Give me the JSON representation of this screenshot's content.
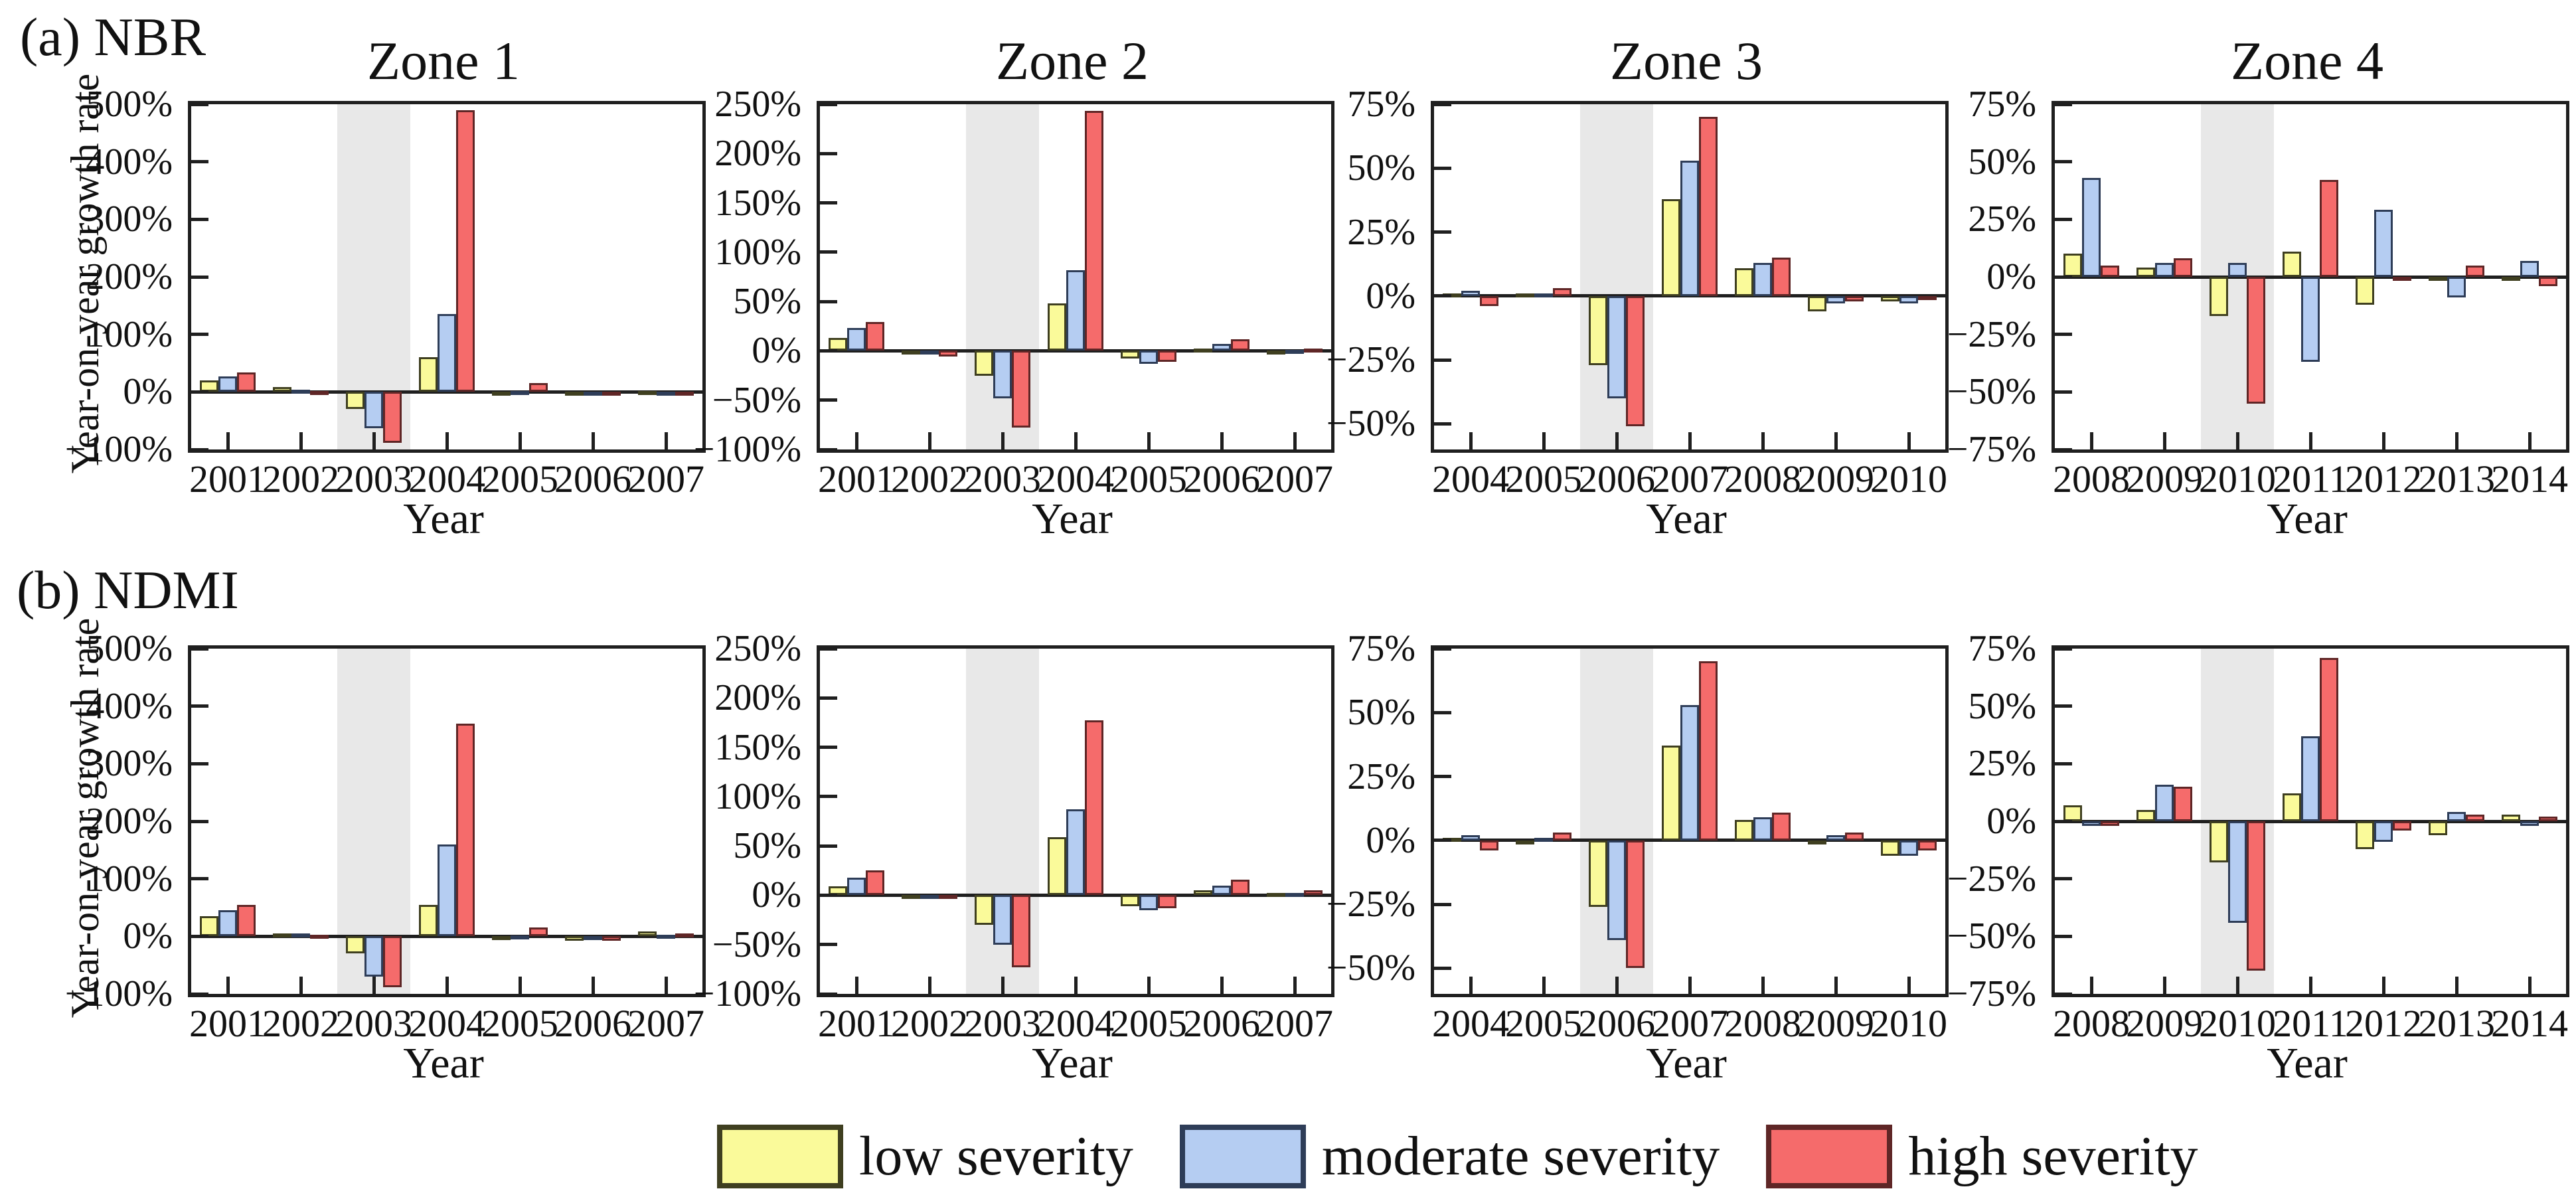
{
  "figure": {
    "panel_a_label": "(a) NBR",
    "panel_b_label": "(b) NDMI",
    "ylabel": "Year-on-year growth rate",
    "xlabel": "Year"
  },
  "legend": {
    "items": [
      {
        "key": "low",
        "label": "low severity",
        "color": "#FAFA9A",
        "border": "#3f3f20"
      },
      {
        "key": "moderate",
        "label": "moderate severity",
        "color": "#B5CDF2",
        "border": "#2e3d58"
      },
      {
        "key": "high",
        "label": "high severity",
        "color": "#F56B6B",
        "border": "#5f2626"
      }
    ]
  },
  "chart_data": [
    {
      "type": "bar",
      "row": "a",
      "index": "NBR",
      "title": "Zone 1",
      "categories": [
        "2001",
        "2002",
        "2003",
        "2004",
        "2005",
        "2006",
        "2007"
      ],
      "shaded_category": "2003",
      "ylim": [
        -100,
        500
      ],
      "yticks": [
        500,
        400,
        300,
        200,
        100,
        0,
        -100
      ],
      "ylabel": "Year-on-year growth rate",
      "xlabel": "Year",
      "series": [
        {
          "name": "low severity",
          "values": [
            20,
            8,
            -30,
            60,
            -5,
            -3,
            1
          ]
        },
        {
          "name": "moderate severity",
          "values": [
            27,
            4,
            -63,
            135,
            1,
            -2,
            -1
          ]
        },
        {
          "name": "high severity",
          "values": [
            34,
            2,
            -88,
            490,
            15,
            -2,
            -2
          ]
        }
      ]
    },
    {
      "type": "bar",
      "row": "a",
      "index": "NBR",
      "title": "Zone 2",
      "categories": [
        "2001",
        "2002",
        "2003",
        "2004",
        "2005",
        "2006",
        "2007"
      ],
      "shaded_category": "2003",
      "ylim": [
        -100,
        250
      ],
      "yticks": [
        250,
        200,
        150,
        100,
        50,
        0,
        -50,
        -100
      ],
      "ylabel": "Year-on-year growth rate",
      "xlabel": "Year",
      "series": [
        {
          "name": "low severity",
          "values": [
            13,
            -2,
            -25,
            48,
            -8,
            2,
            -1
          ]
        },
        {
          "name": "moderate severity",
          "values": [
            23,
            -4,
            -48,
            82,
            -13,
            7,
            1
          ]
        },
        {
          "name": "high severity",
          "values": [
            29,
            -6,
            -78,
            243,
            -11,
            12,
            2
          ]
        }
      ]
    },
    {
      "type": "bar",
      "row": "a",
      "index": "NBR",
      "title": "Zone 3",
      "categories": [
        "2004",
        "2005",
        "2006",
        "2007",
        "2008",
        "2009",
        "2010"
      ],
      "shaded_category": "2006",
      "ylim": [
        -60,
        75
      ],
      "yticks": [
        75,
        50,
        25,
        0,
        -25,
        -50
      ],
      "ylabel": "Year-on-year growth rate",
      "xlabel": "Year",
      "series": [
        {
          "name": "low severity",
          "values": [
            1,
            1,
            -27,
            38,
            11,
            -6,
            -2
          ]
        },
        {
          "name": "moderate severity",
          "values": [
            2,
            1,
            -40,
            53,
            13,
            -3,
            -3
          ]
        },
        {
          "name": "high severity",
          "values": [
            -4,
            3,
            -51,
            70,
            15,
            -2,
            -1
          ]
        }
      ]
    },
    {
      "type": "bar",
      "row": "a",
      "index": "NBR",
      "title": "Zone 4",
      "categories": [
        "2008",
        "2009",
        "2010",
        "2011",
        "2012",
        "2013",
        "2014"
      ],
      "shaded_category": "2010",
      "ylim": [
        -75,
        75
      ],
      "yticks": [
        75,
        50,
        25,
        0,
        -25,
        -50,
        -75
      ],
      "ylabel": "Year-on-year growth rate",
      "xlabel": "Year",
      "series": [
        {
          "name": "low severity",
          "values": [
            10,
            4,
            -17,
            11,
            -12,
            -1,
            -1
          ]
        },
        {
          "name": "moderate severity",
          "values": [
            43,
            6,
            6,
            -37,
            29,
            -9,
            7
          ]
        },
        {
          "name": "high severity",
          "values": [
            5,
            8,
            -55,
            42,
            -1,
            5,
            -4
          ]
        }
      ]
    },
    {
      "type": "bar",
      "row": "b",
      "index": "NDMI",
      "title": "",
      "categories": [
        "2001",
        "2002",
        "2003",
        "2004",
        "2005",
        "2006",
        "2007"
      ],
      "shaded_category": "2003",
      "ylim": [
        -100,
        500
      ],
      "yticks": [
        500,
        400,
        300,
        200,
        100,
        0,
        -100
      ],
      "ylabel": "Year-on-year growth rate",
      "xlabel": "Year",
      "series": [
        {
          "name": "low severity",
          "values": [
            35,
            5,
            -30,
            55,
            -2,
            -8,
            8
          ]
        },
        {
          "name": "moderate severity",
          "values": [
            45,
            5,
            -70,
            160,
            1,
            -7,
            3
          ]
        },
        {
          "name": "high severity",
          "values": [
            55,
            3,
            -88,
            370,
            15,
            -8,
            5
          ]
        }
      ]
    },
    {
      "type": "bar",
      "row": "b",
      "index": "NDMI",
      "title": "",
      "categories": [
        "2001",
        "2002",
        "2003",
        "2004",
        "2005",
        "2006",
        "2007"
      ],
      "shaded_category": "2003",
      "ylim": [
        -100,
        250
      ],
      "yticks": [
        250,
        200,
        150,
        100,
        50,
        0,
        -50,
        -100
      ],
      "ylabel": "Year-on-year growth rate",
      "xlabel": "Year",
      "series": [
        {
          "name": "low severity",
          "values": [
            9,
            -1,
            -30,
            59,
            -11,
            5,
            2
          ]
        },
        {
          "name": "moderate severity",
          "values": [
            18,
            -2,
            -50,
            87,
            -15,
            10,
            2
          ]
        },
        {
          "name": "high severity",
          "values": [
            25,
            -1,
            -73,
            177,
            -13,
            16,
            5
          ]
        }
      ]
    },
    {
      "type": "bar",
      "row": "b",
      "index": "NDMI",
      "title": "",
      "categories": [
        "2004",
        "2005",
        "2006",
        "2007",
        "2008",
        "2009",
        "2010"
      ],
      "shaded_category": "2006",
      "ylim": [
        -60,
        75
      ],
      "yticks": [
        75,
        50,
        25,
        0,
        -25,
        -50
      ],
      "ylabel": "Year-on-year growth rate",
      "xlabel": "Year",
      "series": [
        {
          "name": "low severity",
          "values": [
            1,
            -1,
            -26,
            37,
            8,
            -1,
            -6
          ]
        },
        {
          "name": "moderate severity",
          "values": [
            2,
            1,
            -39,
            53,
            9,
            2,
            -6
          ]
        },
        {
          "name": "high severity",
          "values": [
            -4,
            3,
            -50,
            70,
            11,
            3,
            -4
          ]
        }
      ]
    },
    {
      "type": "bar",
      "row": "b",
      "index": "NDMI",
      "title": "",
      "categories": [
        "2008",
        "2009",
        "2010",
        "2011",
        "2012",
        "2013",
        "2014"
      ],
      "shaded_category": "2010",
      "ylim": [
        -75,
        75
      ],
      "yticks": [
        75,
        50,
        25,
        0,
        -25,
        -50,
        -75
      ],
      "ylabel": "Year-on-year growth rate",
      "xlabel": "Year",
      "series": [
        {
          "name": "low severity",
          "values": [
            7,
            5,
            -18,
            12,
            -12,
            -6,
            3
          ]
        },
        {
          "name": "moderate severity",
          "values": [
            -2,
            16,
            -44,
            37,
            -9,
            4,
            -2
          ]
        },
        {
          "name": "high severity",
          "values": [
            -2,
            15,
            -65,
            71,
            -4,
            3,
            2
          ]
        }
      ]
    }
  ]
}
